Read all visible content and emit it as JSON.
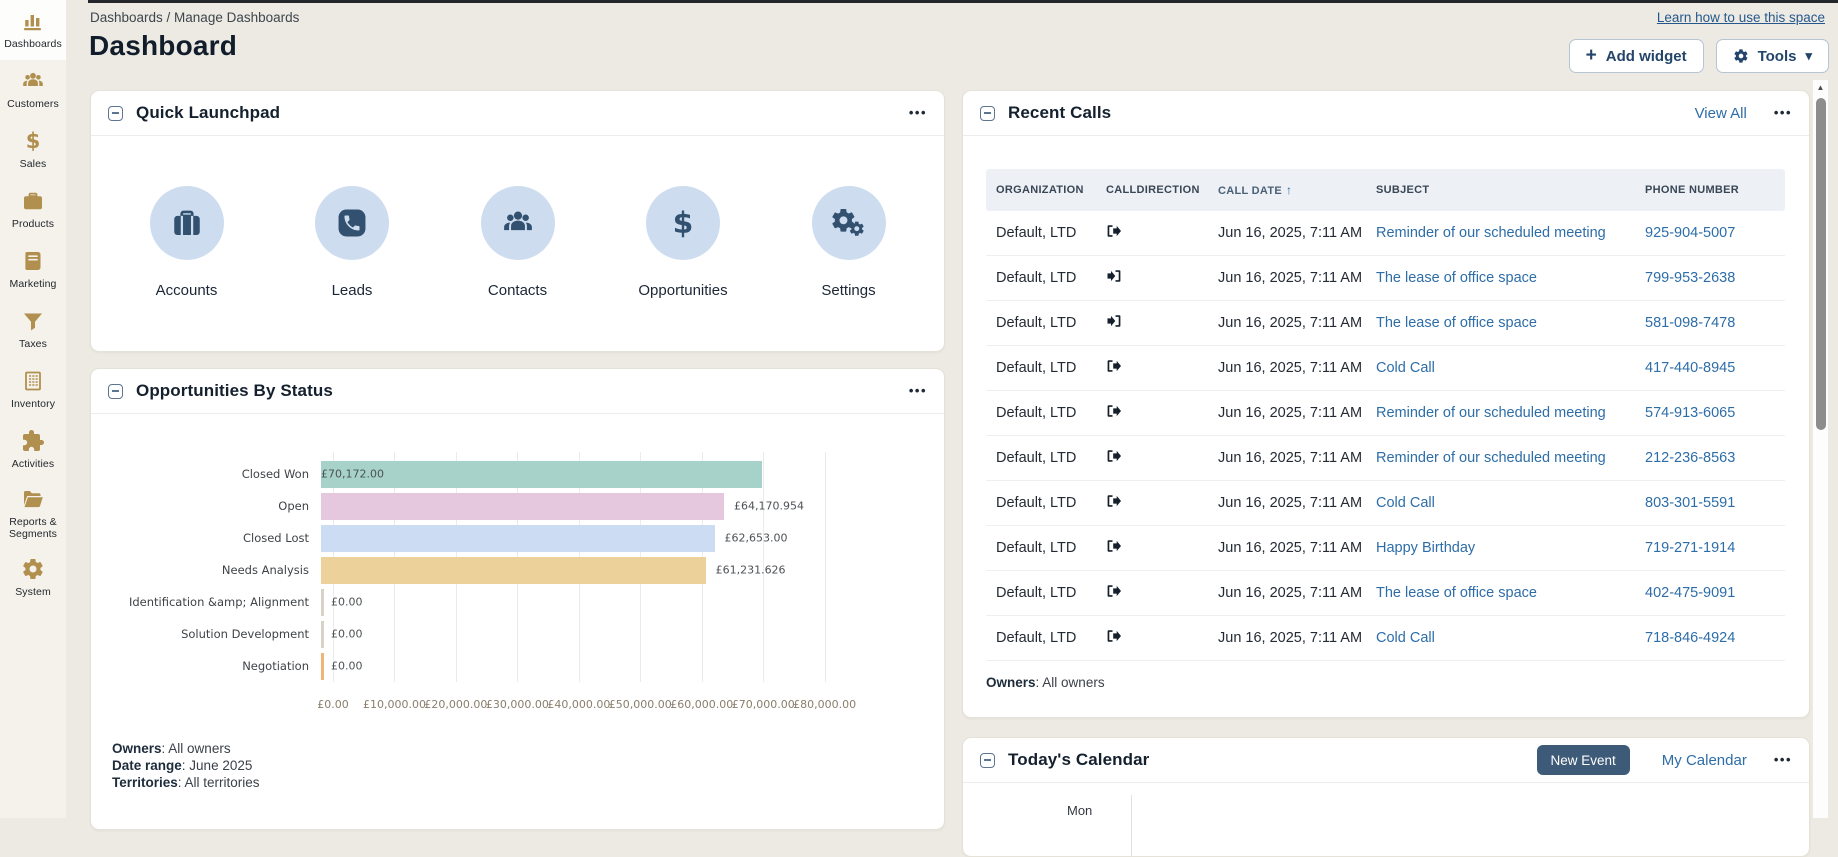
{
  "app": {
    "breadcrumb": "Dashboards / Manage Dashboards",
    "page_title": "Dashboard",
    "learn_link": "Learn how to use this space",
    "add_widget_label": "Add widget",
    "tools_label": "Tools"
  },
  "sidebar": {
    "items": [
      {
        "label": "Dashboards",
        "icon": "bar-chart",
        "active": true
      },
      {
        "label": "Customers",
        "icon": "users",
        "active": false
      },
      {
        "label": "Sales",
        "icon": "dollar",
        "active": false
      },
      {
        "label": "Products",
        "icon": "briefcase",
        "active": false
      },
      {
        "label": "Marketing",
        "icon": "book",
        "active": false
      },
      {
        "label": "Taxes",
        "icon": "funnel",
        "active": false
      },
      {
        "label": "Inventory",
        "icon": "building",
        "active": false
      },
      {
        "label": "Activities",
        "icon": "puzzle",
        "active": false
      },
      {
        "label": "Reports & Segments",
        "icon": "folder-open",
        "active": false
      },
      {
        "label": "System",
        "icon": "gear",
        "active": false
      }
    ]
  },
  "widgets": {
    "quick_launchpad": {
      "title": "Quick Launchpad",
      "items": [
        {
          "label": "Accounts",
          "icon": "briefcase-solid"
        },
        {
          "label": "Leads",
          "icon": "phone-square"
        },
        {
          "label": "Contacts",
          "icon": "users"
        },
        {
          "label": "Opportunities",
          "icon": "dollar"
        },
        {
          "label": "Settings",
          "icon": "gears"
        }
      ]
    },
    "opportunities_by_status": {
      "title": "Opportunities By Status",
      "footer": {
        "owners_label": "Owners",
        "owners_value": "All owners",
        "date_range_label": "Date range",
        "date_range_value": "June 2025",
        "territories_label": "Territories",
        "territories_value": "All territories"
      }
    },
    "recent_calls": {
      "title": "Recent Calls",
      "view_all_label": "View All",
      "columns": [
        {
          "label": "ORGANIZATION",
          "sorted": false
        },
        {
          "label": "CALLDIRECTION",
          "sorted": false
        },
        {
          "label": "CALL DATE",
          "sorted": true,
          "sort_direction": "asc"
        },
        {
          "label": "SUBJECT",
          "sorted": false
        },
        {
          "label": "PHONE NUMBER",
          "sorted": false
        }
      ],
      "rows": [
        {
          "organization": "Default, LTD",
          "direction": "outbound",
          "date": "Jun 16, 2025, 7:11 AM",
          "subject": "Reminder of our scheduled meeting",
          "phone": "925-904-5007"
        },
        {
          "organization": "Default, LTD",
          "direction": "inbound",
          "date": "Jun 16, 2025, 7:11 AM",
          "subject": "The lease of office space",
          "phone": "799-953-2638"
        },
        {
          "organization": "Default, LTD",
          "direction": "inbound",
          "date": "Jun 16, 2025, 7:11 AM",
          "subject": "The lease of office space",
          "phone": "581-098-7478"
        },
        {
          "organization": "Default, LTD",
          "direction": "outbound",
          "date": "Jun 16, 2025, 7:11 AM",
          "subject": "Cold Call",
          "phone": "417-440-8945"
        },
        {
          "organization": "Default, LTD",
          "direction": "outbound",
          "date": "Jun 16, 2025, 7:11 AM",
          "subject": "Reminder of our scheduled meeting",
          "phone": "574-913-6065"
        },
        {
          "organization": "Default, LTD",
          "direction": "outbound",
          "date": "Jun 16, 2025, 7:11 AM",
          "subject": "Reminder of our scheduled meeting",
          "phone": "212-236-8563"
        },
        {
          "organization": "Default, LTD",
          "direction": "outbound",
          "date": "Jun 16, 2025, 7:11 AM",
          "subject": "Cold Call",
          "phone": "803-301-5591"
        },
        {
          "organization": "Default, LTD",
          "direction": "outbound",
          "date": "Jun 16, 2025, 7:11 AM",
          "subject": "Happy Birthday",
          "phone": "719-271-1914"
        },
        {
          "organization": "Default, LTD",
          "direction": "outbound",
          "date": "Jun 16, 2025, 7:11 AM",
          "subject": "The lease of office space",
          "phone": "402-475-9091"
        },
        {
          "organization": "Default, LTD",
          "direction": "outbound",
          "date": "Jun 16, 2025, 7:11 AM",
          "subject": "Cold Call",
          "phone": "718-846-4924"
        }
      ],
      "footer": {
        "owners_label": "Owners",
        "owners_value": "All owners"
      }
    },
    "todays_calendar": {
      "title": "Today's Calendar",
      "new_event_label": "New Event",
      "my_calendar_label": "My Calendar",
      "day_label": "Mon"
    }
  },
  "chart_data": {
    "type": "bar",
    "orientation": "horizontal",
    "title": "Opportunities By Status",
    "categories": [
      "Closed Won",
      "Open",
      "Closed Lost",
      "Needs Analysis",
      "Identification &amp; Alignment",
      "Solution Development",
      "Negotiation"
    ],
    "values": [
      70172.0,
      64170.954,
      62653.0,
      61231.626,
      0,
      0,
      0
    ],
    "value_labels": [
      "£70,172.00",
      "£64,170.954",
      "£62,653.00",
      "£61,231.626",
      "£0.00",
      "£0.00",
      "£0.00"
    ],
    "label_placement": [
      "inside",
      "outside",
      "outside",
      "outside",
      "outside",
      "outside",
      "outside"
    ],
    "bar_colors": [
      "#a6d2ca",
      "#e6c8de",
      "#cbdcf3",
      "#edd19a",
      "#d8d2c8",
      "#d8d2c8",
      "#efb577"
    ],
    "x_ticks": [
      "£0.00",
      "£10,000.00",
      "£20,000.00",
      "£30,000.00",
      "£40,000.00",
      "£50,000.00",
      "£60,000.00",
      "£70,000.00",
      "£80,000.00"
    ],
    "x_tick_values": [
      0,
      10000,
      20000,
      30000,
      40000,
      50000,
      60000,
      70000,
      80000
    ],
    "xlim": [
      0,
      89000
    ],
    "grid": true,
    "legend": false
  }
}
